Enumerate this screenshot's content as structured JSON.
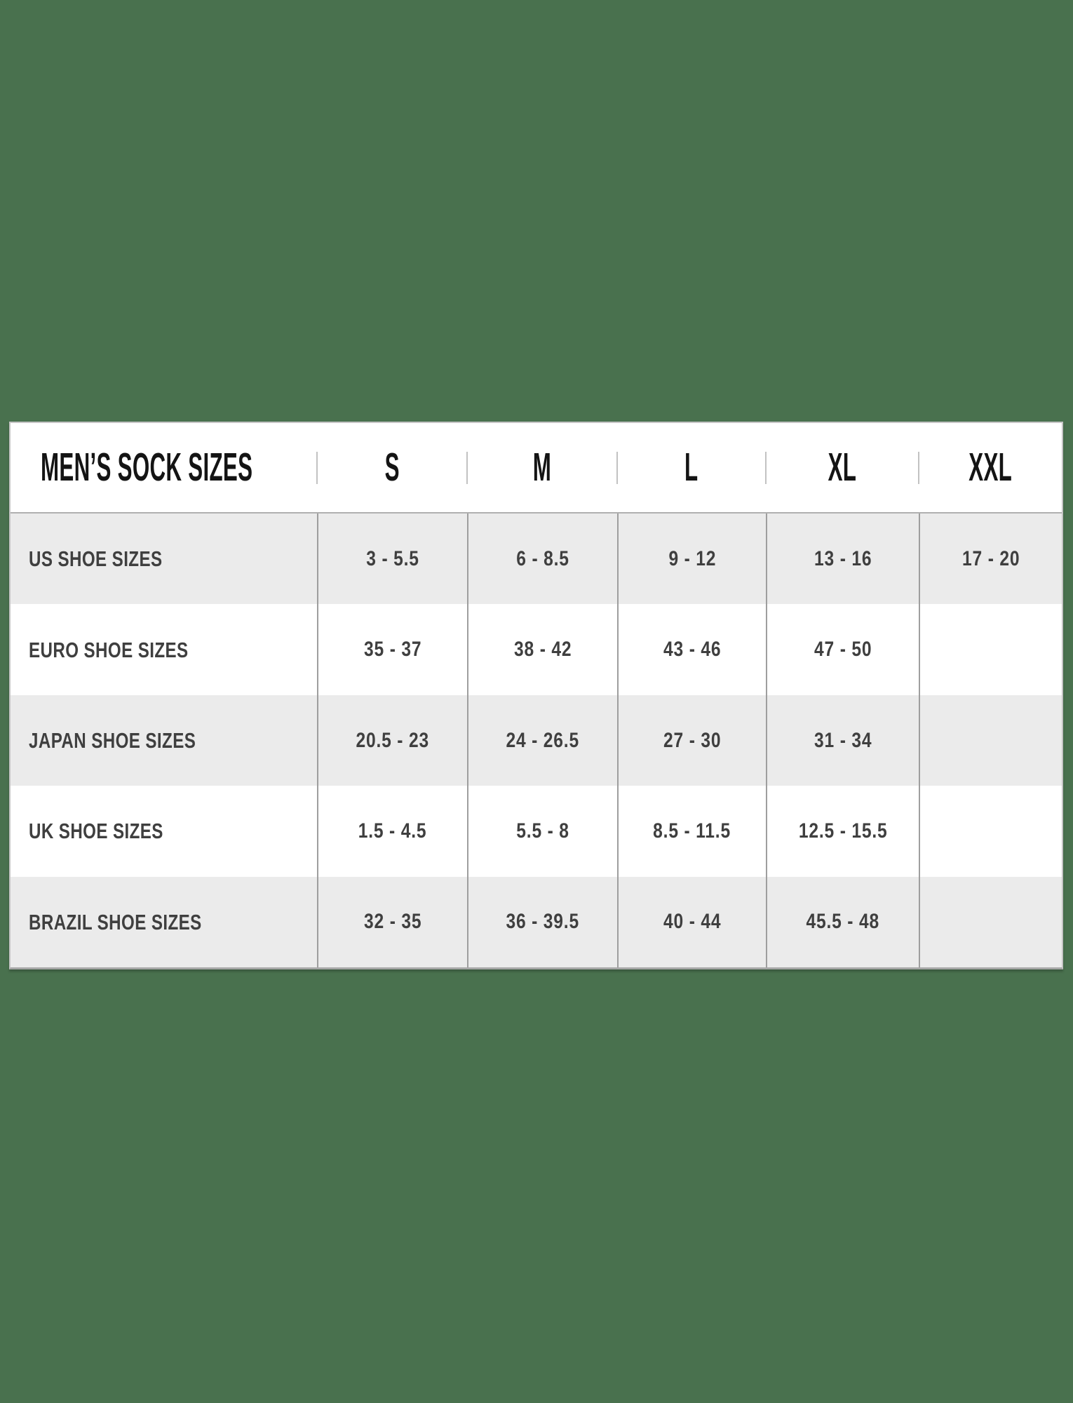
{
  "colors": {
    "page_background": "#49714E",
    "table_background": "#ffffff",
    "stripe_row": "#ebebeb",
    "header_text": "#141414",
    "body_text": "#3f3f3f",
    "column_line": "#9e9e9e",
    "outer_border": "#c5c5c5"
  },
  "table": {
    "title": "MEN’S SOCK SIZES",
    "size_headers": [
      "S",
      "M",
      "L",
      "XL",
      "XXL"
    ],
    "rows": [
      {
        "label": "US SHOE SIZES",
        "values": [
          "3 - 5.5",
          "6 - 8.5",
          "9 - 12",
          "13 - 16",
          "17 - 20"
        ]
      },
      {
        "label": "EURO SHOE SIZES",
        "values": [
          "35 - 37",
          "38 - 42",
          "43 - 46",
          "47 - 50",
          ""
        ]
      },
      {
        "label": "JAPAN SHOE SIZES",
        "values": [
          "20.5 - 23",
          "24 - 26.5",
          "27 - 30",
          "31 - 34",
          ""
        ]
      },
      {
        "label": "UK SHOE SIZES",
        "values": [
          "1.5 - 4.5",
          "5.5 - 8",
          "8.5 - 11.5",
          "12.5 - 15.5",
          ""
        ]
      },
      {
        "label": "BRAZIL SHOE SIZES",
        "values": [
          "32 - 35",
          "36 - 39.5",
          "40 - 44",
          "45.5 - 48",
          ""
        ]
      }
    ]
  },
  "chart_data": {
    "type": "table",
    "title": "MEN’S SOCK SIZES",
    "columns": [
      "MEN’S SOCK SIZES",
      "S",
      "M",
      "L",
      "XL",
      "XXL"
    ],
    "rows": [
      [
        "US SHOE SIZES",
        "3 - 5.5",
        "6 - 8.5",
        "9 - 12",
        "13 - 16",
        "17 - 20"
      ],
      [
        "EURO SHOE SIZES",
        "35 - 37",
        "38 - 42",
        "43 - 46",
        "47 - 50",
        ""
      ],
      [
        "JAPAN SHOE SIZES",
        "20.5 - 23",
        "24 - 26.5",
        "27 - 30",
        "31 - 34",
        ""
      ],
      [
        "UK SHOE SIZES",
        "1.5 - 4.5",
        "5.5 - 8",
        "8.5 - 11.5",
        "12.5 - 15.5",
        ""
      ],
      [
        "BRAZIL SHOE SIZES",
        "32 - 35",
        "36 - 39.5",
        "40 - 44",
        "45.5 - 48",
        ""
      ]
    ],
    "layout": {
      "striped_rows": true,
      "stripe_pattern": "rows 1,3,5 gray / rows 2,4 white",
      "label_column_align": "left",
      "value_columns_align": "center"
    }
  }
}
